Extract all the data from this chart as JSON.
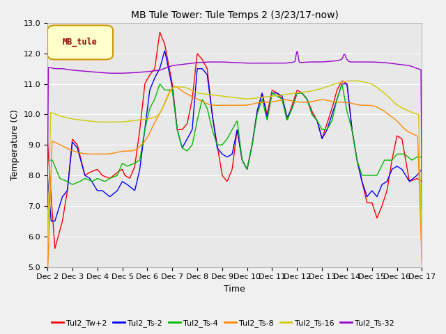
{
  "title": "MB Tule Tower: Tule Temps 2 (3/23/17-now)",
  "xlabel": "Time",
  "ylabel": "Temperature (C)",
  "ylim": [
    5.0,
    13.0
  ],
  "yticks": [
    5.0,
    6.0,
    7.0,
    8.0,
    9.0,
    10.0,
    11.0,
    12.0,
    13.0
  ],
  "xtick_labels": [
    "Dec 2",
    "Dec 3",
    "Dec 4",
    "Dec 5",
    "Dec 6",
    "Dec 7",
    "Dec 8",
    "Dec 9",
    "Dec 10",
    "Dec 11",
    "Dec 12",
    "Dec 13",
    "Dec 14",
    "Dec 15",
    "Dec 16",
    "Dec 17"
  ],
  "background_color": "#e8e8e8",
  "grid_color": "#ffffff",
  "fig_bg": "#f0f0f0",
  "series": {
    "Tul2_Tw+2": {
      "color": "#ff0000",
      "lw": 1.0
    },
    "Tul2_Ts-2": {
      "color": "#0000ff",
      "lw": 1.0
    },
    "Tul2_Ts-4": {
      "color": "#00bb00",
      "lw": 1.0
    },
    "Tul2_Ts-8": {
      "color": "#ff8800",
      "lw": 1.0
    },
    "Tul2_Ts-16": {
      "color": "#cccc00",
      "lw": 1.0
    },
    "Tul2_Ts-32": {
      "color": "#9900cc",
      "lw": 1.0
    }
  },
  "legend_label_text": "MB_tule",
  "legend_box_color": "#ffffcc",
  "legend_box_edge": "#cc9900",
  "legend_text_color": "#990000",
  "title_fontsize": 10,
  "axis_fontsize": 9,
  "tick_fontsize": 8,
  "legend_fontsize": 8
}
